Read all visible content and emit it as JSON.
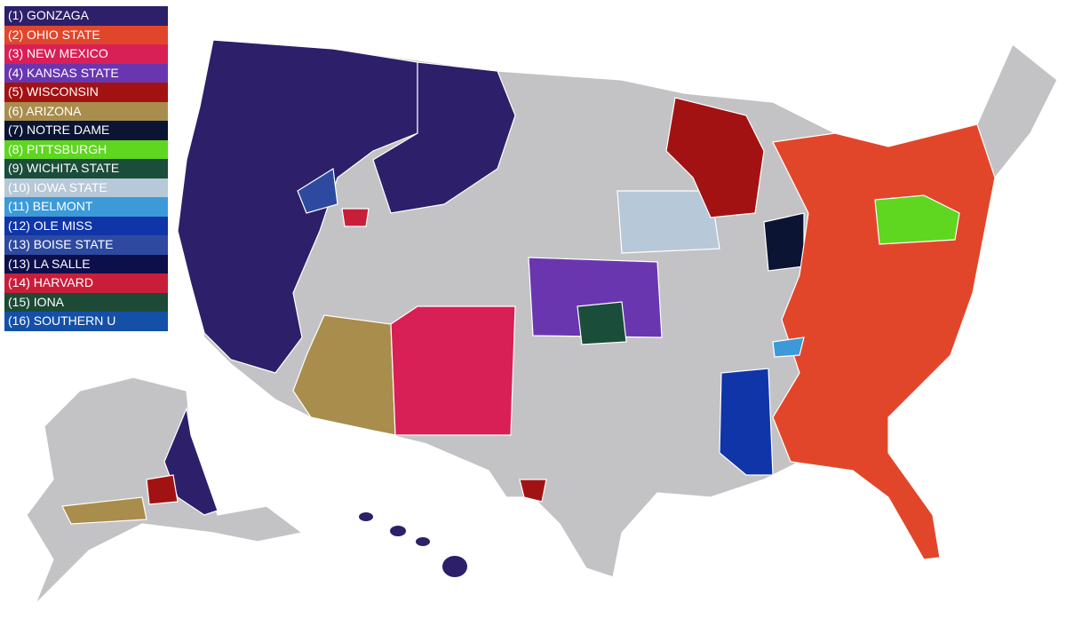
{
  "legend": [
    {
      "label": "(1) GONZAGA",
      "color": "#2d1f69"
    },
    {
      "label": "(2) OHIO STATE",
      "color": "#e2462a"
    },
    {
      "label": "(3) NEW MEXICO",
      "color": "#d81f56"
    },
    {
      "label": "(4) KANSAS STATE",
      "color": "#6a36b0"
    },
    {
      "label": "(5) WISCONSIN",
      "color": "#a31212"
    },
    {
      "label": "(6) ARIZONA",
      "color": "#a88d4c"
    },
    {
      "label": "(7) NOTRE DAME",
      "color": "#0b1433"
    },
    {
      "label": "(8) PITTSBURGH",
      "color": "#5fd620"
    },
    {
      "label": "(9) WICHITA STATE",
      "color": "#1b4d3b"
    },
    {
      "label": "(10) IOWA STATE",
      "color": "#b7c8d8"
    },
    {
      "label": "(11) BELMONT",
      "color": "#3c9ad8"
    },
    {
      "label": "(12) OLE MISS",
      "color": "#0f35a8"
    },
    {
      "label": "(13) BOISE STATE",
      "color": "#2d4aa0"
    },
    {
      "label": "(13) LA SALLE",
      "color": "#0d0f4a"
    },
    {
      "label": "(14) HARVARD",
      "color": "#c81e3a"
    },
    {
      "label": "(15) IONA",
      "color": "#1d4a36"
    },
    {
      "label": "(16) SOUTHERN U",
      "color": "#1450a8"
    }
  ]
}
